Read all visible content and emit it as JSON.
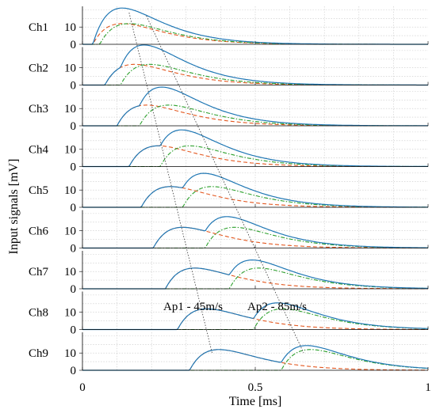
{
  "chart_data": {
    "type": "line",
    "xlabel": "Time [ms]",
    "ylabel": "Input signals [mV]",
    "xlim": [
      0,
      1
    ],
    "xticks": [
      "0",
      "0.5",
      "1"
    ],
    "yticks": [
      "0",
      "10"
    ],
    "ylim_per_panel": [
      0,
      22
    ],
    "grid": true,
    "panels": [
      {
        "label": "Ch1",
        "ap1_onset": 0.03,
        "ap2_onset": 0.03
      },
      {
        "label": "Ch2",
        "ap1_onset": 0.065,
        "ap2_onset": 0.11
      },
      {
        "label": "Ch3",
        "ap1_onset": 0.1,
        "ap2_onset": 0.165
      },
      {
        "label": "Ch4",
        "ap1_onset": 0.135,
        "ap2_onset": 0.225
      },
      {
        "label": "Ch5",
        "ap1_onset": 0.17,
        "ap2_onset": 0.29
      },
      {
        "label": "Ch6",
        "ap1_onset": 0.205,
        "ap2_onset": 0.355
      },
      {
        "label": "Ch7",
        "ap1_onset": 0.24,
        "ap2_onset": 0.425
      },
      {
        "label": "Ch8",
        "ap1_onset": 0.275,
        "ap2_onset": 0.495
      },
      {
        "label": "Ch9",
        "ap1_onset": 0.31,
        "ap2_onset": 0.575
      }
    ],
    "series": [
      {
        "color": "#1f77b4",
        "style": "solid"
      },
      {
        "color": "#e3571f",
        "style": "dashed"
      },
      {
        "color": "#2ca02c",
        "style": "dash-dot"
      }
    ],
    "annotations": [
      {
        "text": "Ap1 - 45m/s"
      },
      {
        "text": "Ap2 - 85m/s"
      }
    ]
  }
}
